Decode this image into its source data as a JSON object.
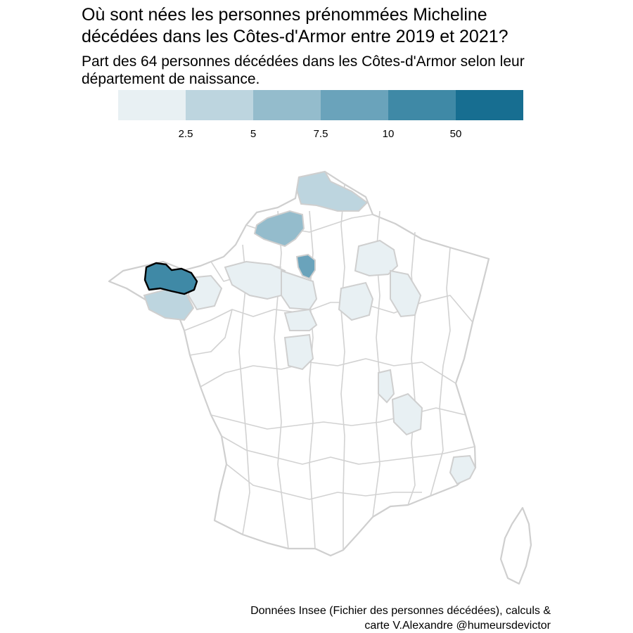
{
  "title_line1": "Où sont nées les personnes prénommées Micheline",
  "title_line2": "décédées dans les Côtes-d'Armor entre 2019 et 2021?",
  "subtitle_line1": "Part des 64 personnes décédées dans les Côtes-d'Armor selon leur",
  "subtitle_line2": "département de naissance.",
  "legend": {
    "colors": [
      "#e8f0f3",
      "#bdd5df",
      "#94bccc",
      "#6aa3bb",
      "#3f89a6",
      "#176e91"
    ],
    "ticks": [
      "2.5",
      "5",
      "7.5",
      "10",
      "50"
    ]
  },
  "highlight_department": "Côtes-d'Armor",
  "caption_line1": "Données Insee (Fichier des personnes décédées), calculs &",
  "caption_line2": "carte V.Alexandre @humeursdevictor"
}
